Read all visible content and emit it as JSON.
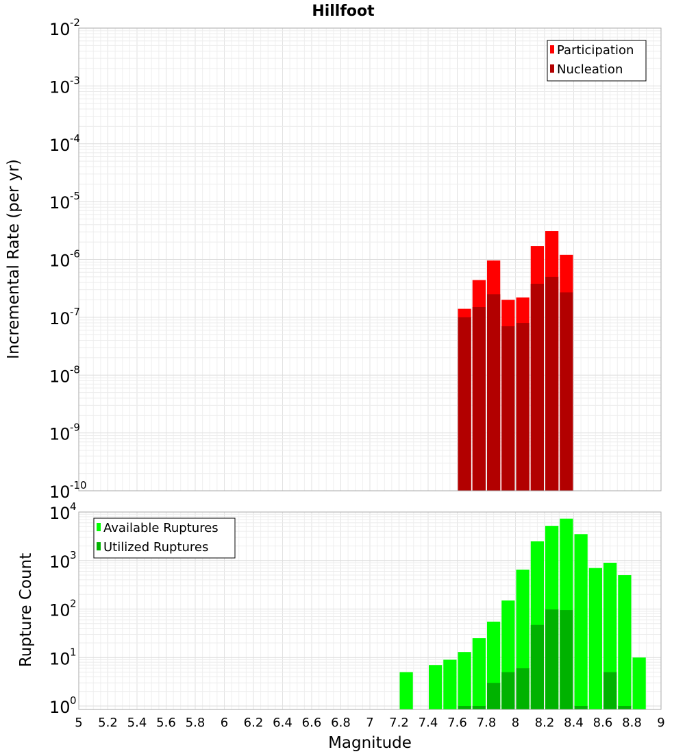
{
  "chart_data": [
    {
      "type": "bar",
      "title": "Hillfoot",
      "ylabel": "Incremental Rate (per yr)",
      "yscale": "log",
      "ylim_exp": [
        -10,
        -2
      ],
      "xlim": [
        5,
        9
      ],
      "grid": true,
      "legend_position": "top-right",
      "bin_width": 0.1,
      "x": [
        7.65,
        7.75,
        7.85,
        7.95,
        8.05,
        8.15,
        8.25,
        8.35
      ],
      "series": [
        {
          "name": "Participation",
          "color": "#ff0000",
          "values": [
            1.4e-07,
            4.4e-07,
            9.6e-07,
            2e-07,
            2.2e-07,
            1.7e-06,
            3.1e-06,
            1.2e-06
          ]
        },
        {
          "name": "Nucleation",
          "color": "#b20000",
          "values": [
            1e-07,
            1.5e-07,
            2.5e-07,
            7e-08,
            8e-08,
            3.8e-07,
            5e-07,
            2.7e-07
          ]
        }
      ]
    },
    {
      "type": "bar",
      "xlabel": "Magnitude",
      "ylabel": "Rupture Count",
      "yscale": "log",
      "ylim_exp": [
        0,
        4
      ],
      "xlim": [
        5,
        9
      ],
      "grid": true,
      "legend_position": "top-left",
      "bin_width": 0.1,
      "x": [
        7.25,
        7.45,
        7.55,
        7.65,
        7.75,
        7.85,
        7.95,
        8.05,
        8.15,
        8.25,
        8.35,
        8.45,
        8.55,
        8.65,
        8.75,
        8.85
      ],
      "series": [
        {
          "name": "Available Ruptures",
          "color": "#00ff00",
          "values": [
            5,
            7,
            9,
            13,
            25,
            55,
            150,
            650,
            2500,
            5200,
            7300,
            3500,
            700,
            900,
            500,
            10
          ]
        },
        {
          "name": "Utilized Ruptures",
          "color": "#00b200",
          "values": [
            0,
            0,
            0,
            1,
            1,
            3,
            5,
            6,
            47,
            98,
            95,
            1,
            0,
            5,
            1,
            0
          ]
        }
      ]
    }
  ],
  "x_ticks": [
    "5",
    "5.2",
    "5.4",
    "5.6",
    "5.8",
    "6",
    "6.2",
    "6.4",
    "6.6",
    "6.8",
    "7",
    "7.2",
    "7.4",
    "7.6",
    "7.8",
    "8",
    "8.2",
    "8.4",
    "8.6",
    "8.8",
    "9"
  ],
  "top_y_ticks": [
    {
      "base": "10",
      "exp": "-2"
    },
    {
      "base": "10",
      "exp": "-3"
    },
    {
      "base": "10",
      "exp": "-4"
    },
    {
      "base": "10",
      "exp": "-5"
    },
    {
      "base": "10",
      "exp": "-6"
    },
    {
      "base": "10",
      "exp": "-7"
    },
    {
      "base": "10",
      "exp": "-8"
    },
    {
      "base": "10",
      "exp": "-9"
    },
    {
      "base": "10",
      "exp": "-10"
    }
  ],
  "bottom_y_ticks": [
    {
      "base": "10",
      "exp": "4"
    },
    {
      "base": "10",
      "exp": "3"
    },
    {
      "base": "10",
      "exp": "2"
    },
    {
      "base": "10",
      "exp": "1"
    },
    {
      "base": "10",
      "exp": "0"
    }
  ]
}
